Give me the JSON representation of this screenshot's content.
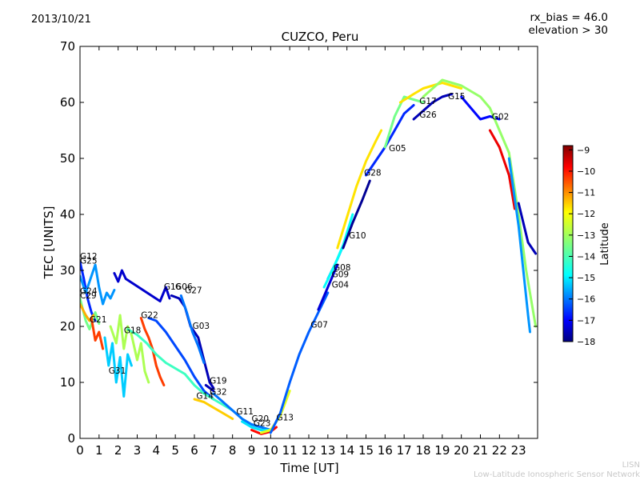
{
  "header": {
    "date": "2013/10/21",
    "rx_bias": "rx_bias = 46.0",
    "elevation": "elevation > 30"
  },
  "footer": {
    "credit_short": "LISN",
    "credit_long": "Low-Latitude Ionospheric Sensor Network"
  },
  "chart_data": {
    "type": "scatter",
    "title": "CUZCO, Peru",
    "xlabel": "Time [UT]",
    "ylabel": "TEC [UNITS]",
    "xlim": [
      0,
      24
    ],
    "ylim": [
      0,
      70
    ],
    "xticks": [
      0,
      1,
      2,
      3,
      4,
      5,
      6,
      7,
      8,
      9,
      10,
      11,
      12,
      13,
      14,
      15,
      16,
      17,
      18,
      19,
      20,
      21,
      22,
      23
    ],
    "yticks": [
      0,
      10,
      20,
      30,
      40,
      50,
      60,
      70
    ],
    "colorbar": {
      "label": "Latitude",
      "range": [
        -18,
        -8.8
      ],
      "ticks": [
        -9,
        -10,
        -11,
        -12,
        -13,
        -14,
        -15,
        -16,
        -17,
        -18
      ],
      "colormap": [
        "#00007f",
        "#0000ff",
        "#007fff",
        "#00ffff",
        "#7fff7f",
        "#ffff00",
        "#ff7f00",
        "#ff0000",
        "#7f0000"
      ]
    },
    "series": [
      {
        "name": "G12",
        "label_at": [
          0.0,
          32.0
        ],
        "lat": -16.5,
        "points": [
          [
            0.0,
            31.5
          ],
          [
            0.2,
            28.5
          ],
          [
            0.4,
            25.0
          ],
          [
            0.6,
            22.5
          ],
          [
            0.8,
            21.0
          ]
        ]
      },
      {
        "name": "G25",
        "label_at": [
          0.0,
          31.2
        ],
        "lat": -15.5,
        "points": [
          [
            0.0,
            29.0
          ],
          [
            0.3,
            26.0
          ],
          [
            0.6,
            29.0
          ],
          [
            0.8,
            31.0
          ],
          [
            1.0,
            27.0
          ],
          [
            1.2,
            24.0
          ],
          [
            1.4,
            26.0
          ],
          [
            1.6,
            25.0
          ],
          [
            1.8,
            26.5
          ]
        ]
      },
      {
        "name": "G24",
        "label_at": [
          0.0,
          25.8
        ],
        "lat": -13.5,
        "points": [
          [
            0.0,
            25.0
          ],
          [
            0.3,
            21.0
          ],
          [
            0.5,
            19.5
          ],
          [
            0.8,
            22.5
          ],
          [
            1.0,
            20.5
          ]
        ]
      },
      {
        "name": "C29",
        "label_at": [
          0.0,
          25.0
        ],
        "lat": -11.5,
        "points": [
          [
            0.0,
            24.0
          ],
          [
            0.3,
            22.0
          ],
          [
            0.5,
            21.0
          ],
          [
            0.7,
            22.0
          ]
        ]
      },
      {
        "name": "G21",
        "label_at": [
          0.5,
          20.7
        ],
        "lat": -10.5,
        "points": [
          [
            0.6,
            21.5
          ],
          [
            0.8,
            17.5
          ],
          [
            1.0,
            19.0
          ],
          [
            1.2,
            16.0
          ]
        ]
      },
      {
        "name": "G31",
        "label_at": [
          1.5,
          11.6
        ],
        "lat": -15.0,
        "points": [
          [
            1.3,
            18.0
          ],
          [
            1.5,
            13.0
          ],
          [
            1.7,
            17.0
          ],
          [
            1.9,
            10.0
          ],
          [
            2.1,
            14.5
          ],
          [
            2.3,
            7.5
          ],
          [
            2.5,
            15.0
          ],
          [
            2.7,
            13.0
          ]
        ]
      },
      {
        "name": "G18",
        "label_at": [
          2.3,
          18.8
        ],
        "lat": -13.0,
        "points": [
          [
            1.6,
            20.0
          ],
          [
            1.9,
            17.0
          ],
          [
            2.1,
            22.0
          ],
          [
            2.3,
            16.0
          ],
          [
            2.5,
            20.0
          ],
          [
            2.7,
            18.5
          ],
          [
            3.0,
            14.0
          ],
          [
            3.2,
            17.0
          ],
          [
            3.4,
            12.0
          ],
          [
            3.6,
            10.0
          ]
        ]
      },
      {
        "name": "G22",
        "label_at": [
          3.2,
          21.5
        ],
        "lat": -10.5,
        "points": [
          [
            3.2,
            21.5
          ],
          [
            3.4,
            19.5
          ],
          [
            3.6,
            18.0
          ],
          [
            3.8,
            16.0
          ],
          [
            4.0,
            13.0
          ],
          [
            4.2,
            11.0
          ],
          [
            4.4,
            9.5
          ]
        ]
      },
      {
        "name": "G16",
        "label_at": [
          4.4,
          26.6
        ],
        "lat": -17.3,
        "points": [
          [
            1.8,
            29.5
          ],
          [
            2.0,
            28.0
          ],
          [
            2.2,
            30.0
          ],
          [
            2.4,
            28.5
          ],
          [
            4.2,
            24.5
          ],
          [
            4.5,
            27.0
          ],
          [
            4.7,
            25.0
          ]
        ]
      },
      {
        "name": "G06",
        "label_at": [
          5.0,
          26.6
        ],
        "lat": -17.5,
        "points": [
          [
            4.8,
            25.5
          ],
          [
            5.2,
            25.0
          ],
          [
            5.5,
            23.5
          ],
          [
            5.8,
            20.0
          ],
          [
            6.2,
            18.0
          ],
          [
            6.5,
            14.0
          ],
          [
            6.8,
            10.0
          ],
          [
            7.0,
            9.0
          ]
        ]
      },
      {
        "name": "G27",
        "label_at": [
          5.5,
          25.9
        ],
        "lat": -15.8,
        "points": [
          [
            5.3,
            25.5
          ],
          [
            5.6,
            22.5
          ],
          [
            5.9,
            19.0
          ],
          [
            6.2,
            16.5
          ],
          [
            6.5,
            13.5
          ]
        ]
      },
      {
        "name": "G03",
        "label_at": [
          5.9,
          19.6
        ],
        "lat": -16.2,
        "points": [
          [
            3.6,
            21.5
          ],
          [
            4.0,
            21.0
          ],
          [
            4.5,
            19.0
          ],
          [
            5.0,
            16.5
          ],
          [
            5.5,
            14.0
          ],
          [
            6.0,
            11.0
          ],
          [
            6.5,
            8.5
          ],
          [
            7.0,
            7.0
          ]
        ]
      },
      {
        "name": "G19",
        "label_at": [
          6.8,
          9.8
        ],
        "lat": -17.5,
        "points": [
          [
            6.6,
            9.5
          ],
          [
            6.8,
            9.0
          ],
          [
            7.0,
            8.5
          ]
        ]
      },
      {
        "name": "G14",
        "label_at": [
          6.1,
          7.1
        ],
        "lat": -14.0,
        "points": [
          [
            2.5,
            19.5
          ],
          [
            3.0,
            18.5
          ],
          [
            3.5,
            17.0
          ],
          [
            4.0,
            15.0
          ],
          [
            4.5,
            13.5
          ],
          [
            5.0,
            12.5
          ],
          [
            5.5,
            11.5
          ],
          [
            6.0,
            9.5
          ],
          [
            6.5,
            8.0
          ],
          [
            7.0,
            7.0
          ],
          [
            7.5,
            6.0
          ],
          [
            8.0,
            5.0
          ],
          [
            8.5,
            3.5
          ],
          [
            9.0,
            2.0
          ],
          [
            9.5,
            1.5
          ]
        ]
      },
      {
        "name": "G32",
        "label_at": [
          6.8,
          7.8
        ],
        "lat": -11.8,
        "points": [
          [
            6.0,
            7.0
          ],
          [
            6.5,
            6.5
          ],
          [
            7.0,
            5.5
          ],
          [
            7.5,
            4.5
          ],
          [
            8.0,
            3.5
          ]
        ]
      },
      {
        "name": "G11",
        "label_at": [
          8.2,
          4.3
        ],
        "lat": -15.8,
        "points": [
          [
            7.0,
            8.0
          ],
          [
            7.5,
            6.5
          ],
          [
            8.0,
            5.0
          ],
          [
            8.5,
            3.5
          ],
          [
            9.0,
            2.5
          ],
          [
            9.5,
            2.0
          ],
          [
            10.0,
            1.5
          ]
        ]
      },
      {
        "name": "G20",
        "label_at": [
          9.0,
          3.0
        ],
        "lat": -14.8,
        "points": [
          [
            8.5,
            3.0
          ],
          [
            9.0,
            2.0
          ],
          [
            9.5,
            1.5
          ],
          [
            10.0,
            1.5
          ]
        ]
      },
      {
        "name": "G23",
        "label_at": [
          9.1,
          2.2
        ],
        "lat": -10.0,
        "points": [
          [
            9.0,
            1.5
          ],
          [
            9.5,
            0.8
          ],
          [
            10.0,
            1.2
          ],
          [
            10.3,
            2.0
          ]
        ]
      },
      {
        "name": "G13",
        "label_at": [
          10.3,
          3.2
        ],
        "lat": -12.5,
        "points": [
          [
            9.5,
            1.0
          ],
          [
            10.0,
            1.5
          ],
          [
            10.5,
            4.0
          ],
          [
            11.0,
            8.5
          ]
        ]
      },
      {
        "name": "G07",
        "label_at": [
          12.1,
          19.8
        ],
        "lat": -16.0,
        "points": [
          [
            10.0,
            1.0
          ],
          [
            10.5,
            4.5
          ],
          [
            11.0,
            10.0
          ],
          [
            11.5,
            15.0
          ],
          [
            12.0,
            19.0
          ],
          [
            12.5,
            22.5
          ],
          [
            13.0,
            26.0
          ]
        ]
      },
      {
        "name": "G04",
        "label_at": [
          13.2,
          26.9
        ],
        "lat": -17.2,
        "points": [
          [
            12.5,
            23.0
          ],
          [
            13.0,
            27.0
          ],
          [
            13.5,
            31.0
          ]
        ]
      },
      {
        "name": "G09",
        "label_at": [
          13.2,
          28.8
        ],
        "lat": -15.2,
        "points": [
          [
            13.0,
            28.5
          ],
          [
            13.5,
            32.0
          ],
          [
            14.0,
            36.0
          ]
        ]
      },
      {
        "name": "G08",
        "label_at": [
          13.3,
          30.0
        ],
        "lat": -14.5,
        "points": [
          [
            12.8,
            27.0
          ],
          [
            13.3,
            30.5
          ],
          [
            13.8,
            34.5
          ],
          [
            14.3,
            40.0
          ]
        ]
      },
      {
        "name": "G10",
        "label_at": [
          14.1,
          35.7
        ],
        "lat": -17.8,
        "points": [
          [
            13.8,
            34.0
          ],
          [
            14.3,
            38.5
          ],
          [
            14.8,
            42.5
          ],
          [
            15.2,
            46.0
          ]
        ]
      },
      {
        "name": "G28",
        "label_at": [
          14.9,
          46.9
        ],
        "lat": -12.0,
        "points": [
          [
            13.5,
            34.0
          ],
          [
            14.0,
            39.5
          ],
          [
            14.5,
            45.0
          ],
          [
            15.0,
            49.5
          ],
          [
            15.5,
            53.0
          ],
          [
            15.8,
            55.0
          ]
        ]
      },
      {
        "name": "G05",
        "label_at": [
          16.2,
          51.3
        ],
        "lat": -16.5,
        "points": [
          [
            15.0,
            47.0
          ],
          [
            15.5,
            49.5
          ],
          [
            16.0,
            52.0
          ],
          [
            16.5,
            55.0
          ],
          [
            17.0,
            58.0
          ],
          [
            17.5,
            59.5
          ]
        ]
      },
      {
        "name": "G17",
        "label_at": [
          17.8,
          59.7
        ],
        "lat": -13.5,
        "points": [
          [
            16.0,
            52.0
          ],
          [
            16.5,
            57.5
          ],
          [
            17.0,
            61.0
          ],
          [
            17.5,
            60.5
          ],
          [
            18.0,
            60.0
          ]
        ]
      },
      {
        "name": "G26",
        "label_at": [
          17.8,
          57.3
        ],
        "lat": -17.5,
        "points": [
          [
            17.5,
            57.0
          ],
          [
            18.0,
            58.5
          ],
          [
            18.5,
            60.0
          ],
          [
            19.0,
            61.0
          ],
          [
            19.5,
            61.5
          ]
        ]
      },
      {
        "name": "G15",
        "label_at": [
          19.3,
          60.6
        ],
        "lat": -12.0,
        "points": [
          [
            16.8,
            60.0
          ],
          [
            17.5,
            61.5
          ],
          [
            18.0,
            62.5
          ],
          [
            18.5,
            63.0
          ],
          [
            19.0,
            63.5
          ],
          [
            19.5,
            63.0
          ],
          [
            20.0,
            62.5
          ]
        ]
      },
      {
        "name": "G02",
        "label_at": [
          21.6,
          56.9
        ],
        "lat": -16.8,
        "points": [
          [
            20.0,
            61.0
          ],
          [
            20.5,
            59.0
          ],
          [
            21.0,
            57.0
          ],
          [
            21.5,
            57.5
          ],
          [
            22.0,
            57.0
          ]
        ]
      },
      {
        "name": "",
        "label_at": null,
        "lat": -13.2,
        "points": [
          [
            18.0,
            61.0
          ],
          [
            18.5,
            62.5
          ],
          [
            19.0,
            64.0
          ],
          [
            19.5,
            63.5
          ],
          [
            20.0,
            63.0
          ],
          [
            20.5,
            62.0
          ],
          [
            21.0,
            61.0
          ],
          [
            21.5,
            59.0
          ],
          [
            22.0,
            55.0
          ],
          [
            22.5,
            51.0
          ],
          [
            23.0,
            40.0
          ],
          [
            23.4,
            30.0
          ],
          [
            23.9,
            20.0
          ]
        ]
      },
      {
        "name": "",
        "label_at": null,
        "lat": -9.8,
        "points": [
          [
            21.5,
            55.0
          ],
          [
            22.0,
            52.0
          ],
          [
            22.5,
            47.0
          ],
          [
            22.8,
            41.0
          ]
        ]
      },
      {
        "name": "",
        "label_at": null,
        "lat": -15.5,
        "points": [
          [
            22.5,
            50.0
          ],
          [
            23.0,
            38.0
          ],
          [
            23.5,
            22.0
          ],
          [
            23.6,
            19.0
          ]
        ]
      },
      {
        "name": "",
        "label_at": null,
        "lat": -17.5,
        "points": [
          [
            23.0,
            42.0
          ],
          [
            23.5,
            35.0
          ],
          [
            23.9,
            33.0
          ]
        ]
      }
    ]
  }
}
